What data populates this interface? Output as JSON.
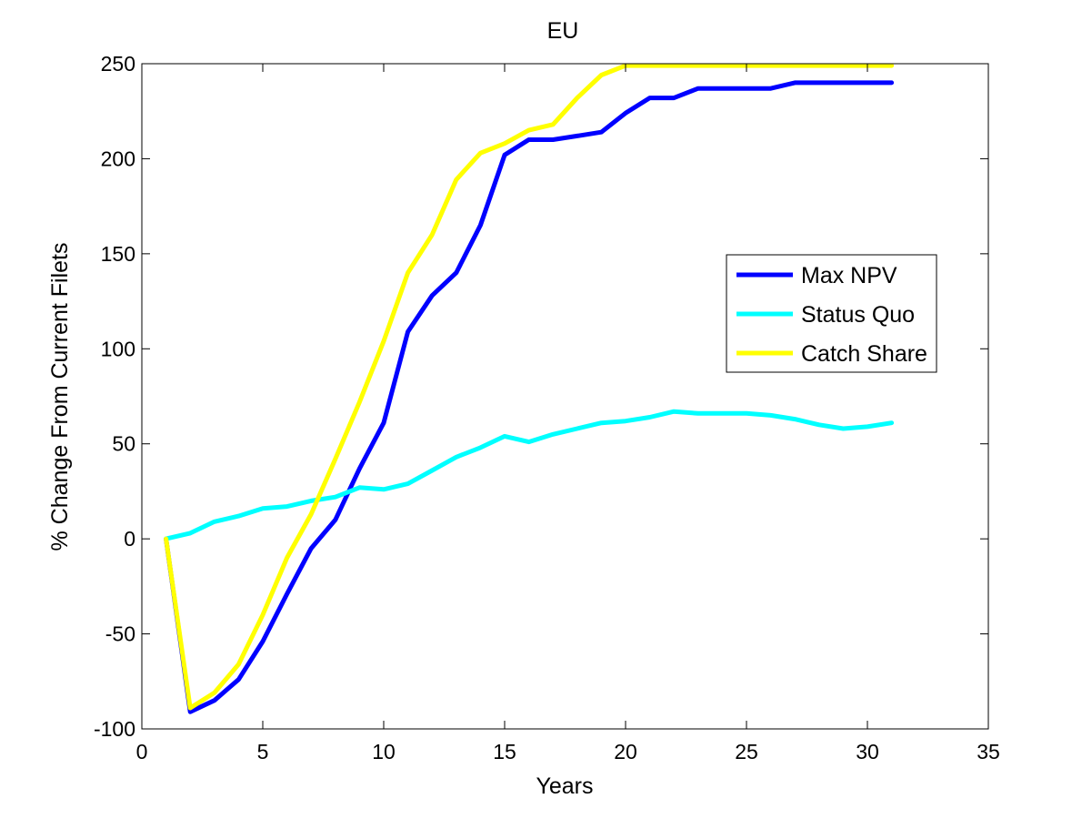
{
  "chart_data": {
    "type": "line",
    "title": "EU",
    "xlabel": "Years",
    "ylabel": "% Change From Current Filets",
    "xlim": [
      0,
      35
    ],
    "ylim": [
      -100,
      250
    ],
    "xticks": [
      0,
      5,
      10,
      15,
      20,
      25,
      30,
      35
    ],
    "yticks": [
      -100,
      -50,
      0,
      50,
      100,
      150,
      200,
      250
    ],
    "grid": false,
    "legend_position": "center-right",
    "x": [
      1,
      2,
      3,
      4,
      5,
      6,
      7,
      8,
      9,
      10,
      11,
      12,
      13,
      14,
      15,
      16,
      17,
      18,
      19,
      20,
      21,
      22,
      23,
      24,
      25,
      26,
      27,
      28,
      29,
      30,
      31
    ],
    "series": [
      {
        "name": "Max NPV",
        "color": "#0000ff",
        "values": [
          0,
          -91,
          -85,
          -74,
          -54,
          -29,
          -5,
          10,
          37,
          61,
          109,
          128,
          140,
          165,
          202,
          210,
          210,
          212,
          214,
          224,
          232,
          232,
          237,
          237,
          237,
          237,
          240,
          240,
          240,
          240,
          240
        ]
      },
      {
        "name": "Status Quo",
        "color": "#00ffff",
        "values": [
          0,
          3,
          9,
          12,
          16,
          17,
          20,
          22,
          27,
          26,
          29,
          36,
          43,
          48,
          54,
          51,
          55,
          58,
          61,
          62,
          64,
          67,
          66,
          66,
          66,
          65,
          63,
          60,
          58,
          59,
          61
        ]
      },
      {
        "name": "Catch Share",
        "color": "#ffff00",
        "values": [
          0,
          -89,
          -81,
          -66,
          -40,
          -10,
          13,
          42,
          72,
          104,
          140,
          160,
          189,
          203,
          208,
          215,
          218,
          232,
          244,
          249,
          249,
          249,
          249,
          249,
          249,
          249,
          249,
          249,
          249,
          249,
          249
        ]
      }
    ]
  }
}
